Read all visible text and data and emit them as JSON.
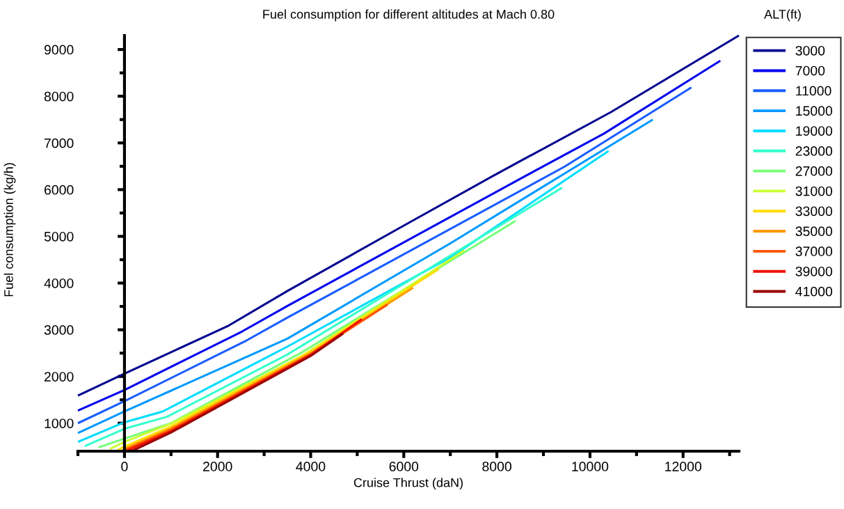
{
  "chart_data": {
    "type": "line",
    "title": "Fuel consumption for different altitudes at Mach 0.80",
    "xlabel": "Cruise Thrust (daN)",
    "ylabel": "Fuel consumption (kg/h)",
    "legend_title": "ALT(ft)",
    "xlim": [
      -1000,
      13200
    ],
    "ylim": [
      400,
      9300
    ],
    "xticks": [
      {
        "value": -1000,
        "label": null
      },
      0,
      {
        "value": 1000,
        "label": null
      },
      2000,
      {
        "value": 3000,
        "label": null
      },
      4000,
      {
        "value": 5000,
        "label": null
      },
      6000,
      {
        "value": 7000,
        "label": null
      },
      8000,
      {
        "value": 9000,
        "label": null
      },
      10000,
      {
        "value": 11000,
        "label": null
      },
      12000,
      {
        "value": 13000,
        "label": null
      }
    ],
    "yticks": [
      1000,
      {
        "value": 1500,
        "label": null
      },
      2000,
      {
        "value": 2500,
        "label": null
      },
      3000,
      {
        "value": 3500,
        "label": null
      },
      4000,
      {
        "value": 4500,
        "label": null
      },
      5000,
      {
        "value": 5500,
        "label": null
      },
      6000,
      {
        "value": 6500,
        "label": null
      },
      7000,
      {
        "value": 7500,
        "label": null
      },
      8000,
      {
        "value": 8500,
        "label": null
      },
      9000
    ],
    "legend": "right",
    "marker": "none",
    "line_style": "solid",
    "series": [
      {
        "name": "3000",
        "color": "#00008f",
        "x": [
          -1000,
          0,
          2240,
          3500,
          6000,
          8000,
          10450,
          13200
        ],
        "values": [
          1590,
          2060,
          3090,
          3830,
          5230,
          6340,
          7660,
          9300
        ]
      },
      {
        "name": "7000",
        "color": "#0000ee",
        "x": [
          -1000,
          0,
          2520,
          3500,
          8700,
          10300,
          12800
        ],
        "values": [
          1270,
          1710,
          2960,
          3510,
          6340,
          7200,
          8760
        ]
      },
      {
        "name": "11000",
        "color": "#1a5cff",
        "x": [
          -1000,
          0,
          2620,
          3500,
          9450,
          12180
        ],
        "values": [
          1000,
          1470,
          2770,
          3260,
          6490,
          8190
        ]
      },
      {
        "name": "15000",
        "color": "#0099ff",
        "x": [
          -1000,
          0,
          3500,
          7000,
          11350
        ],
        "values": [
          790,
          1250,
          2810,
          4850,
          7500
        ]
      },
      {
        "name": "19000",
        "color": "#00ddff",
        "x": [
          -1000,
          0,
          820,
          3500,
          7000,
          10400
        ],
        "values": [
          600,
          1020,
          1250,
          2640,
          4550,
          6830
        ]
      },
      {
        "name": "23000",
        "color": "#33ffcc",
        "x": [
          -850,
          0,
          920,
          3500,
          9400
        ],
        "values": [
          510,
          880,
          1140,
          2470,
          6040
        ]
      },
      {
        "name": "27000",
        "color": "#77ff77",
        "x": [
          -560,
          0,
          1000,
          3800,
          8400
        ],
        "values": [
          480,
          670,
          1000,
          2510,
          5330
        ]
      },
      {
        "name": "31000",
        "color": "#ccff33",
        "x": [
          -310,
          0,
          1000,
          3800,
          7300
        ],
        "values": [
          450,
          600,
          990,
          2430,
          4700
        ]
      },
      {
        "name": "33000",
        "color": "#ffdd00",
        "x": [
          -150,
          0,
          1000,
          4000,
          6750
        ],
        "values": [
          420,
          500,
          930,
          2540,
          4300
        ]
      },
      {
        "name": "35000",
        "color": "#ff9900",
        "x": [
          -50,
          0,
          1000,
          4000,
          6200
        ],
        "values": [
          400,
          450,
          890,
          2500,
          3900
        ]
      },
      {
        "name": "37000",
        "color": "#ff5500",
        "x": [
          0,
          1000,
          4000,
          5650
        ],
        "values": [
          420,
          860,
          2480,
          3540
        ]
      },
      {
        "name": "39000",
        "color": "#ee1100",
        "x": [
          50,
          1000,
          4000,
          5100
        ],
        "values": [
          410,
          830,
          2460,
          3230
        ]
      },
      {
        "name": "41000",
        "color": "#990000",
        "x": [
          150,
          1000,
          4000,
          4700
        ],
        "values": [
          400,
          800,
          2440,
          2920
        ]
      }
    ]
  }
}
